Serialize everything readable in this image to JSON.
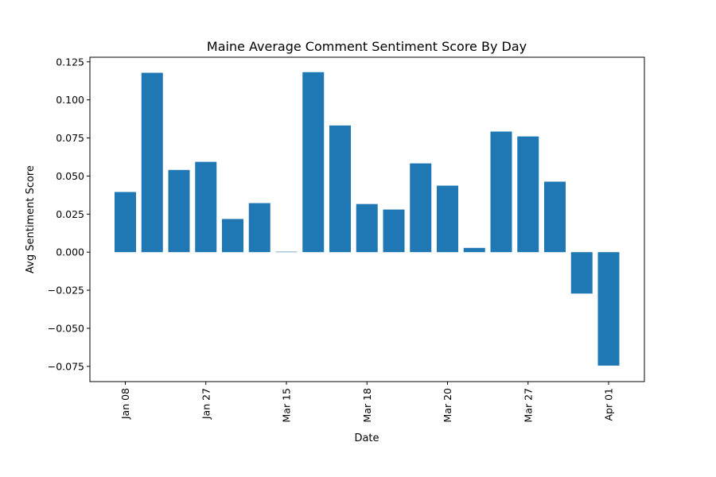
{
  "chart_data": {
    "type": "bar",
    "title": "Maine Average Comment Sentiment Score By Day",
    "xlabel": "Date",
    "ylabel": "Avg Sentiment Score",
    "ylim": [
      -0.085,
      0.128
    ],
    "yticks": [
      -0.075,
      -0.05,
      -0.025,
      0.0,
      0.025,
      0.05,
      0.075,
      0.1,
      0.125
    ],
    "ytick_labels": [
      "−0.075",
      "−0.050",
      "−0.025",
      "0.000",
      "0.025",
      "0.050",
      "0.075",
      "0.100",
      "0.125"
    ],
    "xticks": [
      {
        "label": "Jan 08",
        "index": 0
      },
      {
        "label": "Jan 27",
        "index": 3
      },
      {
        "label": "Mar 15",
        "index": 6
      },
      {
        "label": "Mar 18",
        "index": 9
      },
      {
        "label": "Mar 20",
        "index": 12
      },
      {
        "label": "Mar 27",
        "index": 15
      },
      {
        "label": "Apr 01",
        "index": 18
      }
    ],
    "values": [
      0.0395,
      0.1178,
      0.054,
      0.0593,
      0.0218,
      0.0322,
      0.0003,
      0.1182,
      0.0832,
      0.0316,
      0.028,
      0.0583,
      0.0437,
      0.0028,
      0.0792,
      0.076,
      0.0463,
      -0.0272,
      -0.0745
    ],
    "bar_color": "#1f77b4",
    "grid": false,
    "legend": "none"
  }
}
